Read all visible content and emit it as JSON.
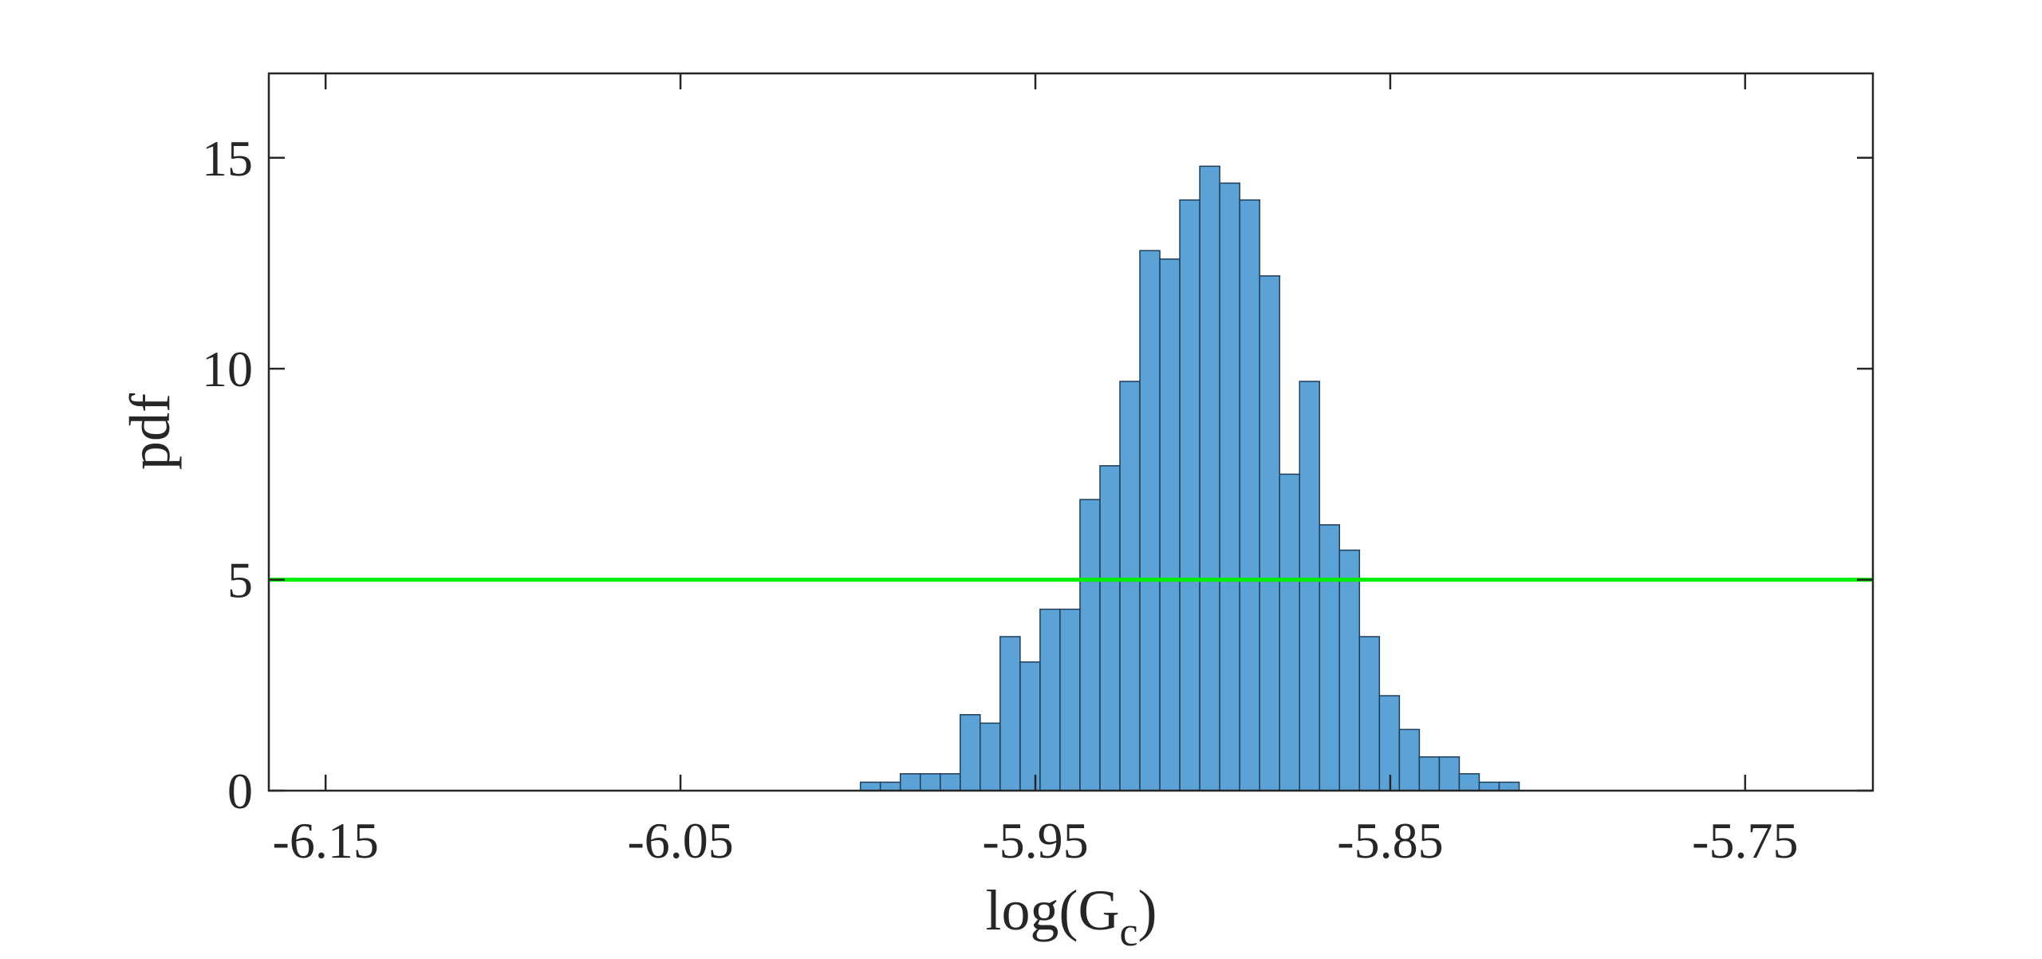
{
  "chart_data": {
    "type": "bar",
    "subtype": "histogram",
    "title": "",
    "xlabel": "log(G",
    "xlabel_subscript": "c",
    "xlabel_close": ")",
    "ylabel": "pdf",
    "xlim": [
      -6.166,
      -5.714
    ],
    "ylim": [
      0,
      17
    ],
    "xticks": [
      -6.15,
      -6.05,
      -5.95,
      -5.85,
      -5.75
    ],
    "xtick_labels": [
      "-6.15",
      "-6.05",
      "-5.95",
      "-5.85",
      "-5.75"
    ],
    "yticks": [
      0,
      5,
      10,
      15
    ],
    "ytick_labels": [
      "0",
      "5",
      "10",
      "15"
    ],
    "grid": false,
    "box": true,
    "bin_width": 0.005625,
    "bin_start": -5.9993,
    "values": [
      0.2,
      0.2,
      0.4,
      0.4,
      0.4,
      1.8,
      1.6,
      3.65,
      3.05,
      4.3,
      4.3,
      6.9,
      7.7,
      9.7,
      12.8,
      12.6,
      14.0,
      14.8,
      14.4,
      14.0,
      12.2,
      7.5,
      9.7,
      6.3,
      5.7,
      3.65,
      2.25,
      1.45,
      0.8,
      0.8,
      0.4,
      0.2,
      0.2
    ],
    "bar_color": "#5ba3d6",
    "bar_edge_color": "#1f3d57",
    "reference_line": {
      "y": 5,
      "color": "#00ee00"
    }
  }
}
